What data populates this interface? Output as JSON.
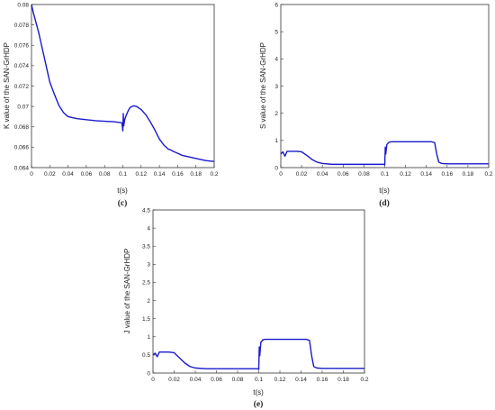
{
  "colors": {
    "line": "#1a1acc",
    "axis": "#333333",
    "background": "#ffffff",
    "text": "#222222"
  },
  "chart_data": [
    {
      "panel_label": "(c)",
      "type": "line",
      "title": "",
      "xlabel": "t(s)",
      "ylabel": "K value of the SAN-GrHDP",
      "xlim": [
        0,
        0.2
      ],
      "ylim": [
        0.064,
        0.08
      ],
      "xticks": [
        0,
        0.02,
        0.04,
        0.06,
        0.08,
        0.1,
        0.12,
        0.14,
        0.16,
        0.18,
        0.2
      ],
      "xtick_labels": [
        "0",
        "0.02",
        "0.04",
        "0.06",
        "0.08",
        "0.1",
        "0.12",
        "0.14",
        "0.16",
        "0.18",
        "0.2"
      ],
      "yticks": [
        0.064,
        0.066,
        0.068,
        0.07,
        0.072,
        0.074,
        0.076,
        0.078,
        0.08
      ],
      "ytick_labels": [
        "0.064",
        "0.066",
        "0.068",
        "0.07",
        "0.072",
        "0.074",
        "0.076",
        "0.078",
        "0.08"
      ],
      "grid": false,
      "series": [
        {
          "x": [
            0,
            0.002,
            0.005,
            0.008,
            0.01,
            0.012,
            0.015,
            0.018,
            0.02,
            0.025,
            0.03,
            0.035,
            0.04,
            0.05,
            0.06,
            0.07,
            0.08,
            0.09,
            0.099,
            0.1,
            0.1005,
            0.101,
            0.102,
            0.104,
            0.106,
            0.108,
            0.11,
            0.112,
            0.115,
            0.12,
            0.125,
            0.13,
            0.135,
            0.14,
            0.145,
            0.15,
            0.152,
            0.155,
            0.16,
            0.165,
            0.17,
            0.175,
            0.18,
            0.185,
            0.19,
            0.195,
            0.2
          ],
          "y": [
            0.08,
            0.0792,
            0.0782,
            0.0772,
            0.0764,
            0.0756,
            0.0744,
            0.0732,
            0.0724,
            0.0712,
            0.0701,
            0.0694,
            0.069,
            0.0688,
            0.0687,
            0.0686,
            0.06855,
            0.0685,
            0.0684,
            0.0676,
            0.0693,
            0.0681,
            0.0687,
            0.0692,
            0.0696,
            0.0699,
            0.07,
            0.07005,
            0.07,
            0.0697,
            0.0692,
            0.0685,
            0.0677,
            0.0668,
            0.0662,
            0.0658,
            0.06575,
            0.0656,
            0.0654,
            0.0652,
            0.0651,
            0.065,
            0.0649,
            0.0648,
            0.0647,
            0.06465,
            0.0646
          ]
        }
      ]
    },
    {
      "panel_label": "(d)",
      "type": "line",
      "title": "",
      "xlabel": "t(s)",
      "ylabel": "S value of the SAN-GrHDP",
      "xlim": [
        0,
        0.2
      ],
      "ylim": [
        0,
        6
      ],
      "xticks": [
        0,
        0.02,
        0.04,
        0.06,
        0.08,
        0.1,
        0.12,
        0.14,
        0.16,
        0.18,
        0.2
      ],
      "xtick_labels": [
        "0",
        "0.02",
        "0.04",
        "0.06",
        "0.08",
        "0.1",
        "0.12",
        "0.14",
        "0.16",
        "0.18",
        "0.2"
      ],
      "yticks": [
        0,
        1,
        2,
        3,
        4,
        5,
        6
      ],
      "ytick_labels": [
        "0",
        "1",
        "2",
        "3",
        "4",
        "5",
        "6"
      ],
      "grid": false,
      "series": [
        {
          "x": [
            0,
            0.002,
            0.004,
            0.006,
            0.008,
            0.01,
            0.015,
            0.02,
            0.025,
            0.03,
            0.035,
            0.04,
            0.05,
            0.06,
            0.07,
            0.08,
            0.09,
            0.099,
            0.1,
            0.1005,
            0.101,
            0.102,
            0.104,
            0.106,
            0.11,
            0.12,
            0.13,
            0.14,
            0.145,
            0.148,
            0.15,
            0.152,
            0.155,
            0.16,
            0.17,
            0.18,
            0.19,
            0.2
          ],
          "y": [
            0.5,
            0.58,
            0.42,
            0.6,
            0.6,
            0.6,
            0.6,
            0.58,
            0.45,
            0.3,
            0.2,
            0.15,
            0.12,
            0.12,
            0.12,
            0.12,
            0.12,
            0.12,
            0.1,
            0.75,
            0.5,
            0.85,
            0.93,
            0.95,
            0.95,
            0.95,
            0.95,
            0.95,
            0.95,
            0.92,
            0.5,
            0.2,
            0.15,
            0.14,
            0.14,
            0.14,
            0.14,
            0.14
          ]
        }
      ]
    },
    {
      "panel_label": "(e)",
      "type": "line",
      "title": "",
      "xlabel": "t(s)",
      "ylabel": "J value of the SAN-GrHDP",
      "xlim": [
        0,
        0.2
      ],
      "ylim": [
        0,
        4.5
      ],
      "xticks": [
        0,
        0.02,
        0.04,
        0.06,
        0.08,
        0.1,
        0.12,
        0.14,
        0.16,
        0.18,
        0.2
      ],
      "xtick_labels": [
        "0",
        "0.02",
        "0.04",
        "0.06",
        "0.08",
        "0.1",
        "0.12",
        "0.14",
        "0.16",
        "0.18",
        "0.2"
      ],
      "yticks": [
        0,
        0.5,
        1,
        1.5,
        2,
        2.5,
        3,
        3.5,
        4,
        4.5
      ],
      "ytick_labels": [
        "0",
        "0.5",
        "1",
        "1.5",
        "2",
        "2.5",
        "3",
        "3.5",
        "4",
        "4.5"
      ],
      "grid": false,
      "series": [
        {
          "x": [
            0,
            0.002,
            0.004,
            0.006,
            0.008,
            0.01,
            0.015,
            0.02,
            0.025,
            0.03,
            0.035,
            0.04,
            0.05,
            0.06,
            0.07,
            0.08,
            0.09,
            0.099,
            0.1,
            0.1005,
            0.101,
            0.102,
            0.104,
            0.106,
            0.11,
            0.12,
            0.13,
            0.14,
            0.145,
            0.148,
            0.15,
            0.152,
            0.155,
            0.16,
            0.17,
            0.18,
            0.19,
            0.2
          ],
          "y": [
            0.5,
            0.55,
            0.45,
            0.58,
            0.58,
            0.58,
            0.58,
            0.56,
            0.42,
            0.28,
            0.18,
            0.14,
            0.12,
            0.12,
            0.12,
            0.12,
            0.12,
            0.12,
            0.1,
            0.72,
            0.48,
            0.85,
            0.92,
            0.93,
            0.93,
            0.93,
            0.93,
            0.93,
            0.93,
            0.9,
            0.48,
            0.18,
            0.14,
            0.13,
            0.13,
            0.13,
            0.13,
            0.13
          ]
        }
      ]
    }
  ]
}
